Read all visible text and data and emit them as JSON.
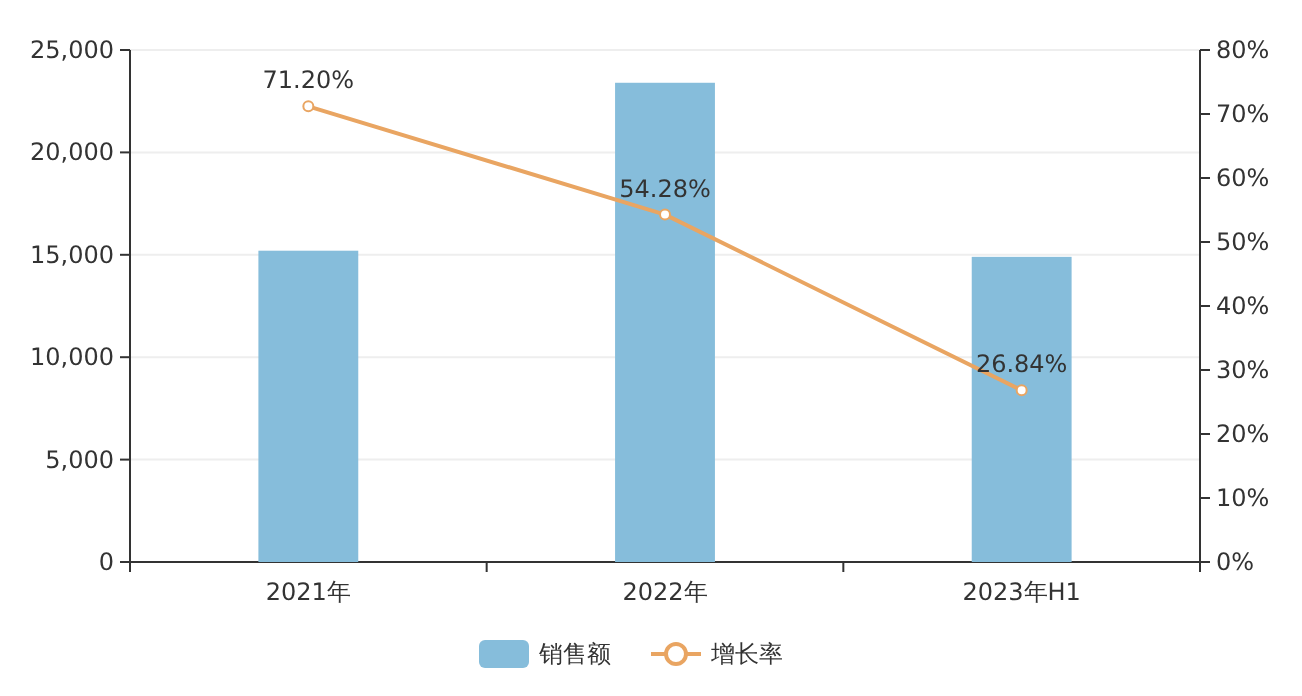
{
  "chart_data": {
    "type": "bar",
    "categories": [
      "2021年",
      "2022年",
      "2023年H1"
    ],
    "series": [
      {
        "name": "销售额",
        "color": "#86bddb",
        "values": [
          15200,
          23400,
          14900
        ]
      },
      {
        "name": "增长率",
        "type": "line",
        "axis": "y2",
        "color": "#e9a562",
        "values": [
          71.2,
          54.28,
          26.84
        ],
        "value_labels": [
          "71.20%",
          "54.28%",
          "26.84%"
        ]
      }
    ],
    "ylim": [
      0,
      25000
    ],
    "yticks": [
      {
        "value": 0,
        "label": "0"
      },
      {
        "value": 5000,
        "label": "5,000"
      },
      {
        "value": 10000,
        "label": "10,000"
      },
      {
        "value": 15000,
        "label": "15,000"
      },
      {
        "value": 20000,
        "label": "20,000"
      },
      {
        "value": 25000,
        "label": "25,000"
      }
    ],
    "y2lim": [
      0,
      80
    ],
    "y2ticks": [
      {
        "value": 0,
        "label": "0%"
      },
      {
        "value": 10,
        "label": "10%"
      },
      {
        "value": 20,
        "label": "20%"
      },
      {
        "value": 30,
        "label": "30%"
      },
      {
        "value": 40,
        "label": "40%"
      },
      {
        "value": 50,
        "label": "50%"
      },
      {
        "value": 60,
        "label": "60%"
      },
      {
        "value": 70,
        "label": "70%"
      },
      {
        "value": 80,
        "label": "80%"
      }
    ],
    "grid": "y",
    "legend": "bottom",
    "marker": "circle"
  }
}
